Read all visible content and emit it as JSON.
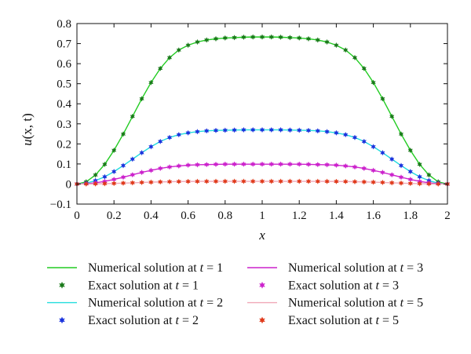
{
  "chart_data": {
    "type": "line",
    "xlabel": "x",
    "ylabel": "u(x, t)",
    "xlim": [
      0,
      2
    ],
    "ylim": [
      -0.1,
      0.8
    ],
    "x_ticks": [
      "0",
      "0.2",
      "0.4",
      "0.6",
      "0.8",
      "1",
      "1.2",
      "1.4",
      "1.6",
      "1.8",
      "2"
    ],
    "y_ticks": [
      "−0.1",
      "0",
      "0.1",
      "0.2",
      "0.3",
      "0.4",
      "0.5",
      "0.6",
      "0.7",
      "0.8"
    ],
    "grid": false,
    "legend_position": "bottom",
    "x": [
      0,
      0.05,
      0.1,
      0.15,
      0.2,
      0.25,
      0.3,
      0.35,
      0.4,
      0.45,
      0.5,
      0.55,
      0.6,
      0.65,
      0.7,
      0.75,
      0.8,
      0.85,
      0.9,
      0.95,
      1.0,
      1.05,
      1.1,
      1.15,
      1.2,
      1.25,
      1.3,
      1.35,
      1.4,
      1.45,
      1.5,
      1.55,
      1.6,
      1.65,
      1.7,
      1.75,
      1.8,
      1.85,
      1.9,
      1.95,
      2.0
    ],
    "series": [
      {
        "name": "Numerical solution at t = 1",
        "kind": "line",
        "color": "#22cc22",
        "values": [
          0,
          0.011,
          0.045,
          0.098,
          0.168,
          0.249,
          0.337,
          0.425,
          0.506,
          0.576,
          0.63,
          0.668,
          0.692,
          0.708,
          0.718,
          0.724,
          0.728,
          0.73,
          0.732,
          0.733,
          0.733,
          0.733,
          0.732,
          0.73,
          0.728,
          0.724,
          0.718,
          0.708,
          0.692,
          0.668,
          0.63,
          0.576,
          0.506,
          0.425,
          0.337,
          0.249,
          0.168,
          0.098,
          0.045,
          0.011,
          0
        ]
      },
      {
        "name": "Exact solution at t = 1",
        "kind": "marker",
        "color": "#1a7a1a",
        "values": [
          0,
          0.011,
          0.045,
          0.098,
          0.168,
          0.249,
          0.337,
          0.425,
          0.506,
          0.576,
          0.63,
          0.668,
          0.692,
          0.708,
          0.718,
          0.724,
          0.728,
          0.73,
          0.732,
          0.733,
          0.733,
          0.733,
          0.732,
          0.73,
          0.728,
          0.724,
          0.718,
          0.708,
          0.692,
          0.668,
          0.63,
          0.576,
          0.506,
          0.425,
          0.337,
          0.249,
          0.168,
          0.098,
          0.045,
          0.011,
          0
        ]
      },
      {
        "name": "Numerical solution at t = 2",
        "kind": "line",
        "color": "#22dddd",
        "values": [
          0,
          0.004,
          0.017,
          0.036,
          0.062,
          0.092,
          0.124,
          0.156,
          0.186,
          0.212,
          0.232,
          0.246,
          0.255,
          0.261,
          0.265,
          0.267,
          0.268,
          0.269,
          0.27,
          0.27,
          0.27,
          0.27,
          0.27,
          0.269,
          0.268,
          0.267,
          0.265,
          0.261,
          0.255,
          0.246,
          0.232,
          0.212,
          0.186,
          0.156,
          0.124,
          0.092,
          0.062,
          0.036,
          0.017,
          0.004,
          0
        ]
      },
      {
        "name": "Exact solution at t = 2",
        "kind": "marker",
        "color": "#1a33dd",
        "values": [
          0,
          0.004,
          0.017,
          0.036,
          0.062,
          0.092,
          0.124,
          0.156,
          0.186,
          0.212,
          0.232,
          0.246,
          0.255,
          0.261,
          0.265,
          0.267,
          0.268,
          0.269,
          0.27,
          0.27,
          0.27,
          0.27,
          0.27,
          0.269,
          0.268,
          0.267,
          0.265,
          0.261,
          0.255,
          0.246,
          0.232,
          0.212,
          0.186,
          0.156,
          0.124,
          0.092,
          0.062,
          0.036,
          0.017,
          0.004,
          0
        ]
      },
      {
        "name": "Numerical solution at t = 3",
        "kind": "line",
        "color": "#cc22cc",
        "values": [
          0,
          0.0015,
          0.006,
          0.013,
          0.023,
          0.034,
          0.046,
          0.058,
          0.068,
          0.078,
          0.085,
          0.09,
          0.094,
          0.096,
          0.097,
          0.098,
          0.099,
          0.099,
          0.099,
          0.099,
          0.099,
          0.099,
          0.099,
          0.099,
          0.099,
          0.098,
          0.097,
          0.096,
          0.094,
          0.09,
          0.085,
          0.078,
          0.068,
          0.058,
          0.046,
          0.034,
          0.023,
          0.013,
          0.006,
          0.0015,
          0
        ]
      },
      {
        "name": "Exact solution at t = 3",
        "kind": "marker",
        "color": "#cc22cc",
        "values": [
          0,
          0.0015,
          0.006,
          0.013,
          0.023,
          0.034,
          0.046,
          0.058,
          0.068,
          0.078,
          0.085,
          0.09,
          0.094,
          0.096,
          0.097,
          0.098,
          0.099,
          0.099,
          0.099,
          0.099,
          0.099,
          0.099,
          0.099,
          0.099,
          0.099,
          0.098,
          0.097,
          0.096,
          0.094,
          0.09,
          0.085,
          0.078,
          0.068,
          0.058,
          0.046,
          0.034,
          0.023,
          0.013,
          0.006,
          0.0015,
          0
        ]
      },
      {
        "name": "Numerical solution at t = 5",
        "kind": "line",
        "color": "#f0a8b8",
        "values": [
          0,
          0.0002,
          0.0008,
          0.0018,
          0.003,
          0.0045,
          0.006,
          0.0078,
          0.0092,
          0.0105,
          0.0115,
          0.0122,
          0.0127,
          0.013,
          0.0132,
          0.0133,
          0.0134,
          0.0134,
          0.0134,
          0.0134,
          0.0134,
          0.0134,
          0.0134,
          0.0134,
          0.0134,
          0.0133,
          0.0132,
          0.013,
          0.0127,
          0.0122,
          0.0115,
          0.0105,
          0.0092,
          0.0078,
          0.006,
          0.0045,
          0.003,
          0.0018,
          0.0008,
          0.0002,
          0
        ]
      },
      {
        "name": "Exact solution at t = 5",
        "kind": "marker",
        "color": "#e03a1a",
        "values": [
          0,
          0.0002,
          0.0008,
          0.0018,
          0.003,
          0.0045,
          0.006,
          0.0078,
          0.0092,
          0.0105,
          0.0115,
          0.0122,
          0.0127,
          0.013,
          0.0132,
          0.0133,
          0.0134,
          0.0134,
          0.0134,
          0.0134,
          0.0134,
          0.0134,
          0.0134,
          0.0134,
          0.0134,
          0.0133,
          0.0132,
          0.013,
          0.0127,
          0.0122,
          0.0115,
          0.0105,
          0.0092,
          0.0078,
          0.006,
          0.0045,
          0.003,
          0.0018,
          0.0008,
          0.0002,
          0
        ]
      }
    ]
  }
}
